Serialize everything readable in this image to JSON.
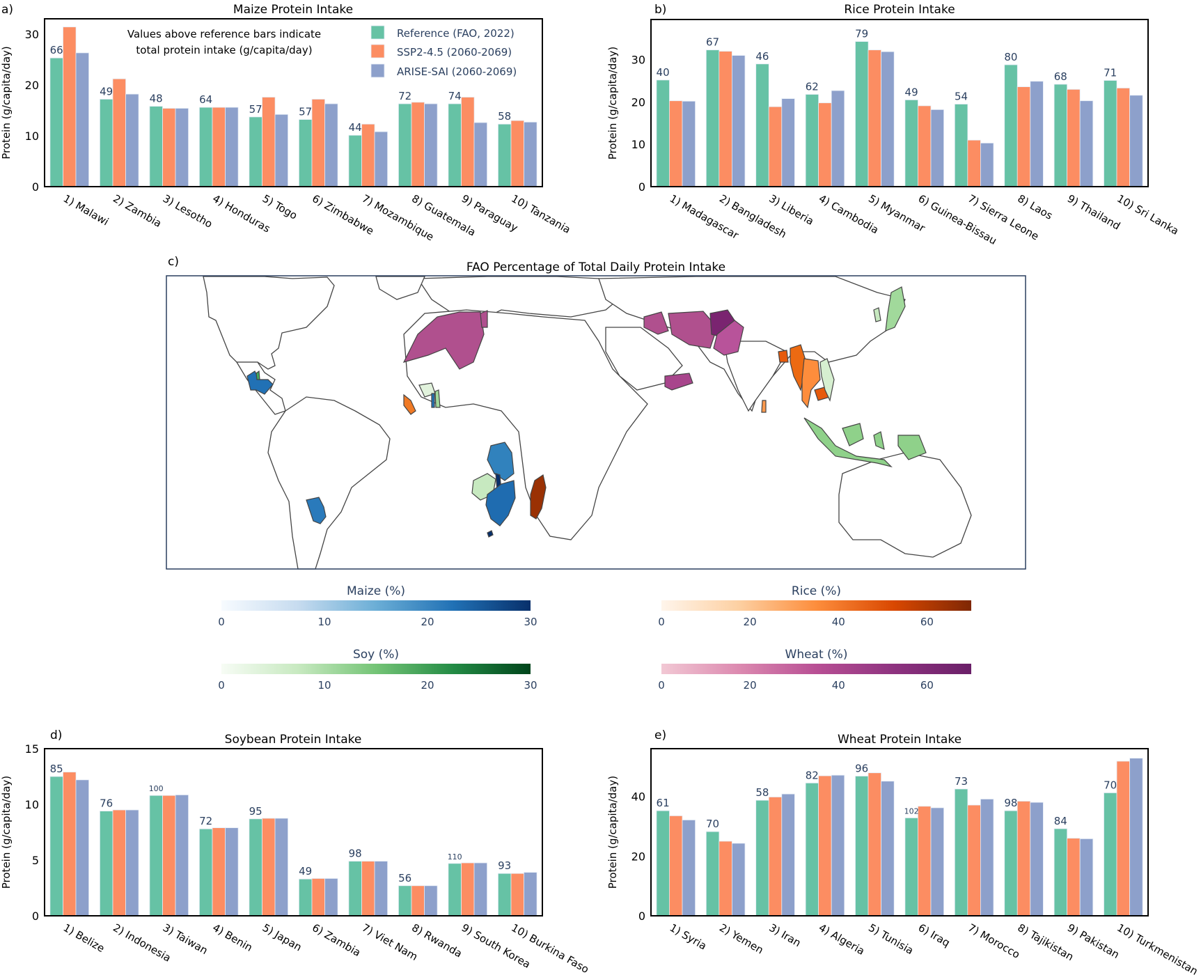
{
  "colors": {
    "reference": "#66c2a5",
    "ssp": "#fc8d62",
    "arise": "#8da0cb",
    "annotation_text": "#2a3f5f",
    "frame": "#000000",
    "map_frame": "#2a3f5f",
    "map_border": "#444444"
  },
  "legend": {
    "items": [
      {
        "key": "reference",
        "label": "Reference (FAO, 2022)"
      },
      {
        "key": "ssp",
        "label": "SSP2-4.5 (2060-2069)"
      },
      {
        "key": "arise",
        "label": "ARISE-SAI (2060-2069)"
      }
    ],
    "note_line1": "Values above reference bars indicate",
    "note_line2": "total protein intake (g/capita/day)"
  },
  "chart_data": [
    {
      "id": "maize",
      "panel": "a)",
      "type": "bar",
      "title": "Maize Protein Intake",
      "xlabel": "",
      "ylabel": "Protein (g/capita/day)",
      "ylim": [
        0,
        33
      ],
      "yticks": [
        0,
        10,
        20,
        30
      ],
      "grid": false,
      "legend": "top-right",
      "categories": [
        "1) Malawi",
        "2) Zambia",
        "3) Lesotho",
        "4) Honduras",
        "5) Togo",
        "6) Zimbabwe",
        "7) Mozambique",
        "8) Guatemala",
        "9) Paraguay",
        "10) Tanzania"
      ],
      "total_protein_labels": [
        "66",
        "49",
        "48",
        "64",
        "57",
        "57",
        "44",
        "72",
        "74",
        "58"
      ],
      "series": [
        {
          "name": "Reference (FAO, 2022)",
          "key": "reference",
          "values": [
            25.3,
            17.2,
            15.8,
            15.6,
            13.7,
            13.2,
            10.1,
            16.3,
            16.3,
            12.3
          ]
        },
        {
          "name": "SSP2-4.5 (2060-2069)",
          "key": "ssp",
          "values": [
            31.4,
            21.2,
            15.4,
            15.6,
            17.6,
            17.2,
            12.3,
            16.6,
            17.6,
            13.0
          ]
        },
        {
          "name": "ARISE-SAI (2060-2069)",
          "key": "arise",
          "values": [
            26.3,
            18.2,
            15.4,
            15.6,
            14.2,
            16.3,
            10.8,
            16.3,
            12.6,
            12.7
          ]
        }
      ]
    },
    {
      "id": "rice",
      "panel": "b)",
      "type": "bar",
      "title": "Rice Protein Intake",
      "xlabel": "",
      "ylabel": "Protein (g/capita/day)",
      "ylim": [
        0,
        39.5
      ],
      "yticks": [
        0,
        10,
        20,
        30
      ],
      "grid": false,
      "categories": [
        "1) Madagascar",
        "2) Bangladesh",
        "3) Liberia",
        "4) Cambodia",
        "5) Myanmar",
        "6) Guinea-Bissau",
        "7) Sierra Leone",
        "8) Laos",
        "9) Thailand",
        "10) Sri Lanka"
      ],
      "total_protein_labels": [
        "40",
        "67",
        "46",
        "62",
        "79",
        "49",
        "54",
        "80",
        "68",
        "71"
      ],
      "series": [
        {
          "name": "Reference (FAO, 2022)",
          "key": "reference",
          "values": [
            25.2,
            32.3,
            29.0,
            21.8,
            34.3,
            20.5,
            19.5,
            28.8,
            24.2,
            25.1
          ]
        },
        {
          "name": "SSP2-4.5 (2060-2069)",
          "key": "ssp",
          "values": [
            20.3,
            32.0,
            18.9,
            19.8,
            32.3,
            19.1,
            11.0,
            23.6,
            23.0,
            23.3
          ]
        },
        {
          "name": "ARISE-SAI (2060-2069)",
          "key": "arise",
          "values": [
            20.2,
            31.0,
            20.8,
            22.7,
            31.9,
            18.2,
            10.3,
            24.9,
            20.3,
            21.6
          ]
        }
      ]
    },
    {
      "id": "soybean",
      "panel": "d)",
      "type": "bar",
      "title": "Soybean Protein Intake",
      "xlabel": "",
      "ylabel": "Protein (g/capita/day)",
      "ylim": [
        0,
        15
      ],
      "yticks": [
        0,
        5,
        10,
        15
      ],
      "grid": false,
      "categories": [
        "1) Belize",
        "2) Indonesia",
        "3) Taiwan",
        "4) Benin",
        "5) Japan",
        "6) Zambia",
        "7) Viet Nam",
        "8) Rwanda",
        "9) South Korea",
        "10) Burkina Faso"
      ],
      "total_protein_labels": [
        "85",
        "76",
        "100",
        "72",
        "95",
        "49",
        "98",
        "56",
        "110",
        "93"
      ],
      "series": [
        {
          "name": "Reference (FAO, 2022)",
          "key": "reference",
          "values": [
            12.5,
            9.4,
            10.8,
            7.8,
            8.7,
            3.3,
            4.9,
            2.7,
            4.7,
            3.8
          ]
        },
        {
          "name": "SSP2-4.5 (2060-2069)",
          "key": "ssp",
          "values": [
            12.9,
            9.5,
            10.8,
            7.9,
            8.75,
            3.35,
            4.9,
            2.7,
            4.75,
            3.8
          ]
        },
        {
          "name": "ARISE-SAI (2060-2069)",
          "key": "arise",
          "values": [
            12.2,
            9.5,
            10.85,
            7.9,
            8.75,
            3.35,
            4.9,
            2.7,
            4.75,
            3.9
          ]
        }
      ]
    },
    {
      "id": "wheat",
      "panel": "e)",
      "type": "bar",
      "title": "Wheat Protein Intake",
      "xlabel": "",
      "ylabel": "Protein (g/capita/day)",
      "ylim": [
        0,
        56
      ],
      "yticks": [
        0,
        20,
        40
      ],
      "grid": false,
      "categories": [
        "1) Syria",
        "2) Yemen",
        "3) Iran",
        "4) Algeria",
        "5) Tunisia",
        "6) Iraq",
        "7) Morocco",
        "8) Tajikistan",
        "9) Pakistan",
        "10) Turkmenistan"
      ],
      "total_protein_labels": [
        "61",
        "70",
        "58",
        "82",
        "96",
        "102",
        "73",
        "98",
        "84",
        "70"
      ],
      "series": [
        {
          "name": "Reference (FAO, 2022)",
          "key": "reference",
          "values": [
            35.2,
            28.2,
            38.7,
            44.5,
            46.8,
            32.8,
            42.5,
            35.2,
            29.2,
            41.2
          ]
        },
        {
          "name": "SSP2-4.5 (2060-2069)",
          "key": "ssp",
          "values": [
            33.5,
            25.0,
            39.8,
            46.9,
            47.9,
            36.7,
            37.1,
            38.4,
            26.0,
            51.8
          ]
        },
        {
          "name": "ARISE-SAI (2060-2069)",
          "key": "arise",
          "values": [
            32.1,
            24.3,
            40.8,
            47.1,
            45.1,
            36.2,
            39.1,
            38.0,
            25.8,
            52.8
          ]
        }
      ]
    },
    {
      "id": "map",
      "panel": "c)",
      "type": "heatmap",
      "title": "FAO Percentage of Total Daily Protein Intake",
      "colorbars": [
        {
          "id": "maize",
          "label": "Maize (%)",
          "range": [
            0,
            30
          ],
          "ticks": [
            0,
            10,
            20,
            30
          ],
          "stops": [
            "#f7fbff",
            "#c6dbef",
            "#6baed6",
            "#2171b5",
            "#08306b"
          ]
        },
        {
          "id": "rice",
          "label": "Rice (%)",
          "range": [
            0,
            70
          ],
          "ticks": [
            0,
            20,
            40,
            60
          ],
          "stops": [
            "#fff5eb",
            "#fdd0a2",
            "#fd8d3c",
            "#d94801",
            "#7f2704"
          ]
        },
        {
          "id": "soy",
          "label": "Soy (%)",
          "range": [
            0,
            30
          ],
          "ticks": [
            0,
            10,
            20,
            30
          ],
          "stops": [
            "#f7fcf5",
            "#c7e9c0",
            "#74c476",
            "#238b45",
            "#00441b"
          ]
        },
        {
          "id": "wheat",
          "label": "Wheat (%)",
          "range": [
            0,
            70
          ],
          "ticks": [
            0,
            20,
            40,
            60
          ],
          "stops": [
            "#f2c8d4",
            "#dc8ab0",
            "#b84f94",
            "#8e3380",
            "#6a1f68"
          ]
        }
      ],
      "highlighted_regions": [
        {
          "name": "Guatemala/Honduras",
          "crop": "maize",
          "color": "#2171b5"
        },
        {
          "name": "Paraguay",
          "crop": "maize",
          "color": "#2a7abb"
        },
        {
          "name": "Tanzania",
          "crop": "maize",
          "color": "#3182bd"
        },
        {
          "name": "Mozambique",
          "crop": "maize",
          "color": "#1f6cb0"
        },
        {
          "name": "Zimbabwe",
          "crop": "maize",
          "color": "#2171b5"
        },
        {
          "name": "Malawi",
          "crop": "maize",
          "color": "#08306b"
        },
        {
          "name": "Lesotho",
          "crop": "maize",
          "color": "#08306b"
        },
        {
          "name": "Zambia",
          "crop": "soy",
          "color": "#c7e9c0"
        },
        {
          "name": "Burkina Faso",
          "crop": "soy",
          "color": "#e1f2dc"
        },
        {
          "name": "Indonesia",
          "crop": "soy",
          "color": "#8fd18a"
        },
        {
          "name": "Japan",
          "crop": "soy",
          "color": "#a1d99b"
        },
        {
          "name": "South Korea",
          "crop": "soy",
          "color": "#c7e9c0"
        },
        {
          "name": "Viet Nam",
          "crop": "soy",
          "color": "#d6efd0"
        },
        {
          "name": "Madagascar",
          "crop": "rice",
          "color": "#9a3104"
        },
        {
          "name": "Myanmar/Bangladesh",
          "crop": "rice",
          "color": "#ec6a12"
        },
        {
          "name": "Thailand/Laos",
          "crop": "rice",
          "color": "#fd8d3c"
        },
        {
          "name": "Cambodia",
          "crop": "rice",
          "color": "#e65a0c"
        },
        {
          "name": "Sri Lanka",
          "crop": "rice",
          "color": "#fd9a4e"
        },
        {
          "name": "Sierra Leone/Liberia",
          "crop": "rice",
          "color": "#f07a25"
        },
        {
          "name": "Morocco/Algeria",
          "crop": "wheat",
          "color": "#b0508e"
        },
        {
          "name": "Iran/Iraq/Syria",
          "crop": "wheat",
          "color": "#b0508e"
        },
        {
          "name": "Afghanistan",
          "crop": "wheat",
          "color": "#7a2470"
        },
        {
          "name": "Pakistan",
          "crop": "wheat",
          "color": "#b8539a"
        },
        {
          "name": "Yemen",
          "crop": "wheat",
          "color": "#a8458c"
        }
      ]
    }
  ]
}
